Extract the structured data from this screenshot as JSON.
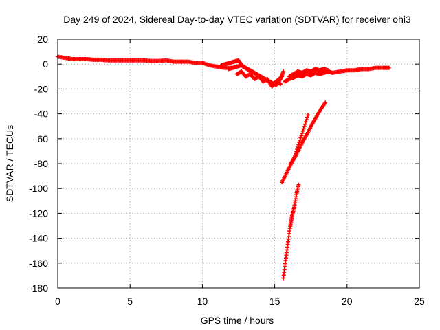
{
  "chart_data": {
    "type": "scatter",
    "title": "Day 249 of 2024, Sidereal Day-to-day VTEC variation (SDTVAR) for receiver ohi3",
    "xlabel": "GPS time / hours",
    "ylabel": "SDTVAR / TECUs",
    "xlim": [
      0,
      25
    ],
    "ylim": [
      -180,
      20
    ],
    "xticks": [
      0,
      5,
      10,
      15,
      20,
      25
    ],
    "yticks": [
      20,
      0,
      -20,
      -40,
      -60,
      -80,
      -100,
      -120,
      -140,
      -160,
      -180
    ],
    "grid": true,
    "legend": "none",
    "marker": "plus",
    "color": "#ff0000",
    "series": [
      {
        "x": [
          0.0,
          0.5,
          1.0,
          1.5,
          2.0,
          2.5,
          3.0,
          3.5,
          4.0,
          4.5,
          5.0,
          5.5,
          6.0,
          6.5,
          7.0,
          7.5,
          8.0,
          8.5,
          9.0,
          9.5,
          10.0,
          10.5,
          11.0,
          11.5,
          12.0
        ],
        "values": [
          6,
          5,
          4,
          4,
          4,
          3.5,
          3.5,
          3,
          3,
          3,
          3,
          3,
          3,
          2.5,
          2.5,
          3,
          2,
          2,
          2,
          1,
          1,
          -1,
          -2,
          -3,
          -3
        ]
      },
      {
        "x": [
          11.3,
          11.6,
          11.9,
          12.2,
          12.5,
          12.8,
          13.1,
          13.4,
          13.7,
          14.0,
          14.3,
          14.6,
          14.9,
          15.2,
          15.5
        ],
        "values": [
          -1,
          0,
          1,
          2,
          3,
          -2,
          -4,
          -6,
          -8,
          -10,
          -12,
          -14,
          -16,
          -13,
          -10
        ]
      },
      {
        "x": [
          11.8,
          12.1,
          12.4,
          12.7,
          13.0,
          13.3,
          13.6,
          13.9,
          14.2,
          14.5,
          14.8,
          15.1,
          15.4,
          15.6
        ],
        "values": [
          -4,
          -3,
          -2,
          -1,
          -3,
          -5,
          -7,
          -9,
          -11,
          -13,
          -15,
          -17,
          -12,
          -6
        ]
      },
      {
        "x": [
          12.4,
          12.7,
          13.0,
          13.3,
          13.6,
          13.9,
          14.2,
          14.5,
          14.8,
          15.1,
          15.4
        ],
        "values": [
          -8,
          -6,
          -10,
          -8,
          -12,
          -10,
          -14,
          -12,
          -18,
          -14,
          -16
        ]
      },
      {
        "x": [
          15.7,
          16.0,
          16.3,
          16.6,
          16.9,
          17.2,
          17.5,
          17.8,
          18.1,
          18.4,
          18.7,
          19.0,
          19.5,
          20.0,
          20.5,
          21.0,
          21.5,
          22.0,
          22.5,
          22.9
        ],
        "values": [
          -14,
          -12,
          -11,
          -9,
          -10,
          -8,
          -9,
          -7,
          -8,
          -7,
          -6,
          -7,
          -6,
          -5,
          -5,
          -4,
          -4,
          -3,
          -3,
          -3
        ]
      },
      {
        "x": [
          16.0,
          16.3,
          16.6,
          16.9,
          17.2,
          17.5,
          17.8,
          18.1,
          18.4,
          18.7
        ],
        "values": [
          -10,
          -8,
          -6,
          -7,
          -5,
          -6,
          -4,
          -5,
          -4,
          -5
        ]
      },
      {
        "x": [
          15.5,
          15.8,
          16.1,
          16.4,
          16.7,
          17.0,
          17.3
        ],
        "values": [
          -95,
          -88,
          -81,
          -74,
          -63,
          -52,
          -41
        ]
      },
      {
        "x": [
          16.1,
          16.4,
          16.7,
          17.0,
          17.3,
          17.6,
          17.9,
          18.2,
          18.5
        ],
        "values": [
          -80,
          -75,
          -68,
          -61,
          -55,
          -48,
          -42,
          -36,
          -31
        ]
      },
      {
        "x": [
          15.6,
          15.75,
          15.9,
          16.05,
          16.2,
          16.35,
          16.5,
          16.65
        ],
        "values": [
          -172,
          -158,
          -145,
          -132,
          -122,
          -115,
          -105,
          -97
        ]
      }
    ]
  }
}
